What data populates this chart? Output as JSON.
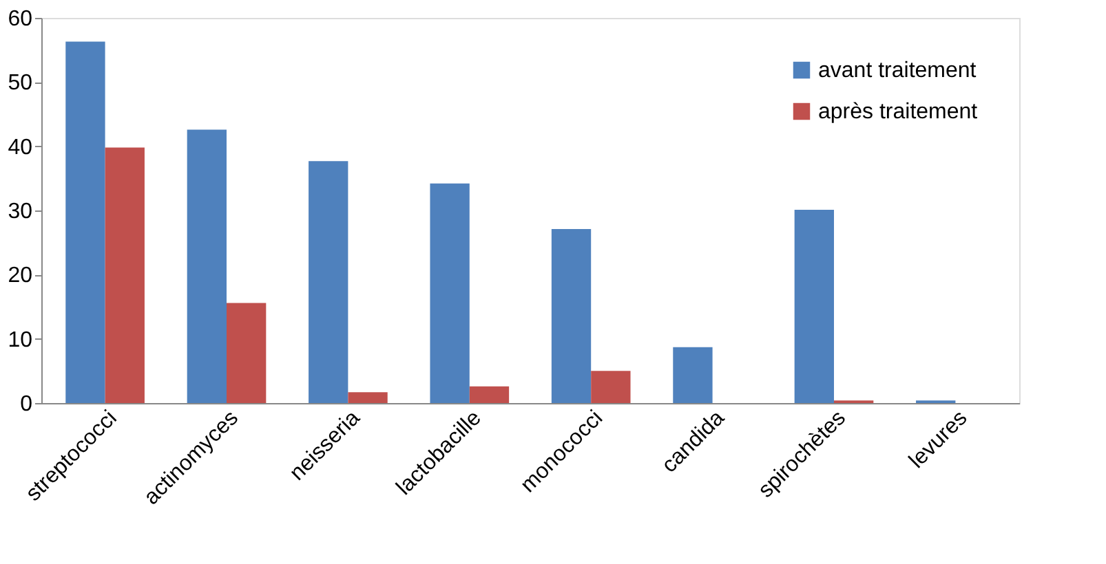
{
  "chart_data": {
    "type": "bar",
    "categories": [
      "streptococci",
      "actinomyces",
      "neisseria",
      "lactobacille",
      "monococci",
      "candida",
      "spirochètes",
      "levures"
    ],
    "series": [
      {
        "name": "avant traitement",
        "color": "#4f81bd",
        "values": [
          56.3,
          42.6,
          37.7,
          34.2,
          27.1,
          8.7,
          30.1,
          0.4
        ]
      },
      {
        "name": "après traitement",
        "color": "#c0504d",
        "values": [
          39.8,
          15.6,
          1.7,
          2.6,
          5.0,
          0,
          0.4,
          0
        ]
      }
    ],
    "ylim": [
      0,
      60
    ],
    "yticks": [
      0,
      10,
      20,
      30,
      40,
      50,
      60
    ],
    "grid": false,
    "legend": "top right"
  }
}
